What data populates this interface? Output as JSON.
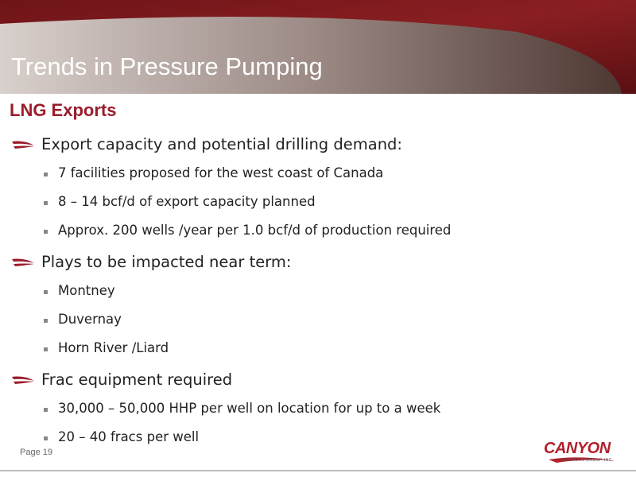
{
  "header": {
    "title": "Trends in Pressure Pumping"
  },
  "subtitle": "LNG Exports",
  "sections": [
    {
      "heading": "Export capacity and potential drilling demand:",
      "items": [
        "7 facilities proposed for the west coast of Canada",
        "8 – 14 bcf/d of export capacity planned",
        "Approx. 200 wells /year per 1.0 bcf/d of production required"
      ]
    },
    {
      "heading": "Plays to be impacted near term:",
      "items": [
        "Montney",
        "Duvernay",
        "Horn River /Liard"
      ]
    },
    {
      "heading": "Frac equipment required",
      "items": [
        "30,000 – 50,000 HHP per well on location for up to a week",
        "20 – 40 fracs per well"
      ]
    }
  ],
  "footer": {
    "page": "Page 19",
    "logo": "CANYON",
    "logo_tagline": "SERVICES GROUP INC."
  }
}
